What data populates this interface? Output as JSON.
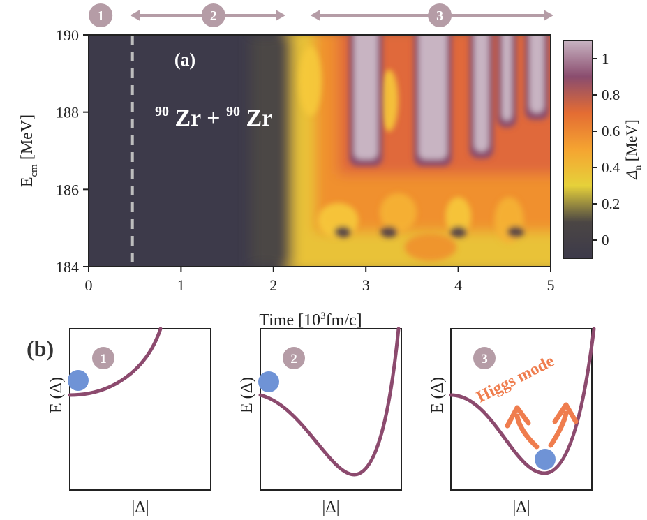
{
  "colors": {
    "axis": "#222222",
    "badge_fill": "#b59ca6",
    "badge_text": "#ffffff",
    "arrow": "#b59ca6",
    "curve": "#8c4a6e",
    "ball": "#6f93d6",
    "higgs": "#ef7d4e",
    "dashed_line": "#bdbdbd",
    "colormap": [
      "#3d3a4a",
      "#4b4644",
      "#e6d13a",
      "#f5a431",
      "#e46c33",
      "#8a4c6e",
      "#c8b4c2"
    ]
  },
  "stage_badges": [
    "1",
    "2",
    "3"
  ],
  "chart_data": [
    {
      "type": "heatmap",
      "panel_label": "(a)",
      "annotation": {
        "sup1": "90",
        "el1": "Zr + ",
        "sup2": "90",
        "el2": "Zr"
      },
      "xlabel": {
        "prefix": "Time [10",
        "sup": "3",
        "suffix": "fm/c]"
      },
      "ylabel": {
        "main": "E",
        "sub": "cm",
        "units": " [MeV]"
      },
      "xlim": [
        0,
        5
      ],
      "ylim": [
        184,
        190
      ],
      "xticks": [
        "0",
        "1",
        "2",
        "3",
        "4",
        "5"
      ],
      "yticks": [
        "184",
        "186",
        "188",
        "190"
      ],
      "dashed_line_x": 0.47,
      "onset_time": 2.2,
      "colorbar": {
        "label": {
          "main": "Δ",
          "sub": "n",
          "units": " [MeV]"
        },
        "range": [
          -0.1,
          1.1
        ],
        "ticks": [
          "0",
          "0.2",
          "0.4",
          "0.6",
          "0.8",
          "1"
        ]
      },
      "high_gap_regions": [
        {
          "t": [
            2.85,
            3.15
          ],
          "e": [
            186.6,
            190
          ]
        },
        {
          "t": [
            3.55,
            3.9
          ],
          "e": [
            186.6,
            190
          ]
        },
        {
          "t": [
            4.15,
            4.35
          ],
          "e": [
            186.8,
            190
          ]
        },
        {
          "t": [
            4.45,
            4.6
          ],
          "e": [
            187.6,
            190
          ]
        },
        {
          "t": [
            4.75,
            4.95
          ],
          "e": [
            187.8,
            190
          ]
        }
      ],
      "stages": [
        {
          "label": "1",
          "from": 0,
          "to": 0.47
        },
        {
          "label": "2",
          "from": 0.6,
          "to": 2.1
        },
        {
          "label": "3",
          "from": 2.55,
          "to": 5.0
        }
      ]
    },
    {
      "type": "line",
      "panel_label": "(b)",
      "panels": [
        {
          "badge": "1",
          "xlabel": "|Δ|",
          "ylabel": "E (Δ)",
          "note": "",
          "shape": "monotonic"
        },
        {
          "badge": "2",
          "xlabel": "|Δ|",
          "ylabel": "E (Δ)",
          "note": "",
          "shape": "mexican-hat"
        },
        {
          "badge": "3",
          "xlabel": "|Δ|",
          "ylabel": "E (Δ)",
          "note": "Higgs mode",
          "shape": "mexican-hat"
        }
      ]
    }
  ]
}
